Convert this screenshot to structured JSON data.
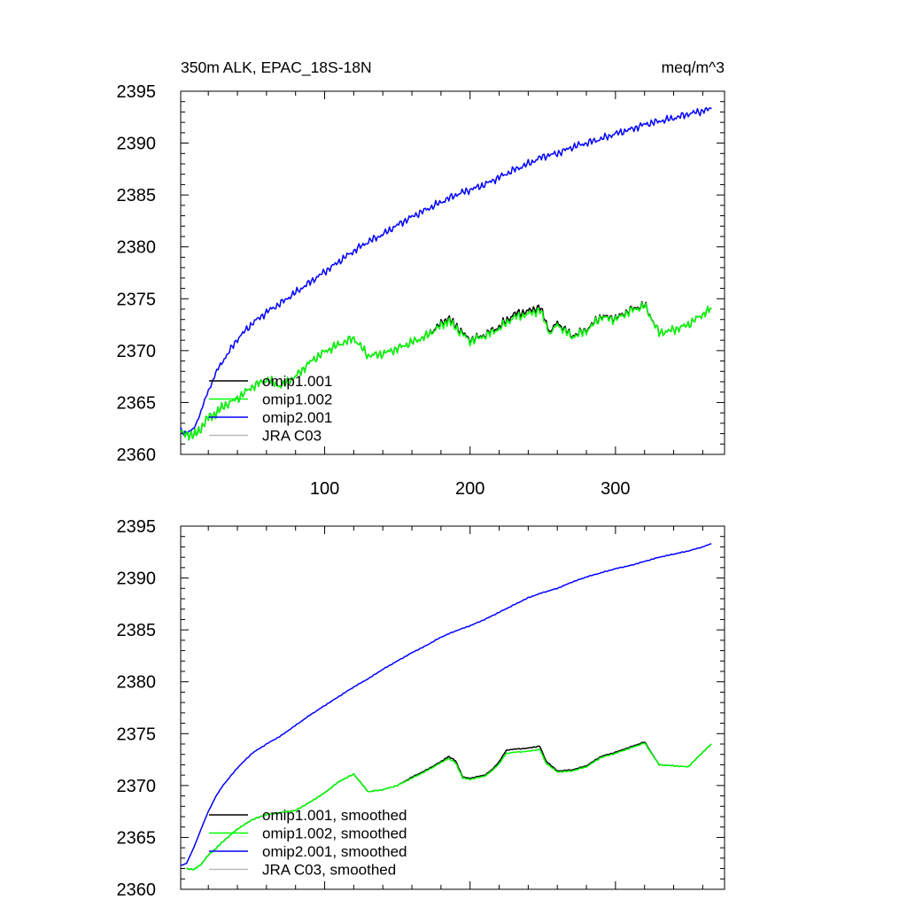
{
  "chart_data": [
    {
      "type": "line",
      "title": "350m ALK, EPAC_18S-18N",
      "units": "meq/m^3",
      "xlim": [
        1,
        375
      ],
      "ylim": [
        2360,
        2395
      ],
      "x_ticks": [
        "100",
        "200",
        "300"
      ],
      "y_ticks": [
        "2360",
        "2365",
        "2370",
        "2375",
        "2380",
        "2385",
        "2390",
        "2395"
      ],
      "legend_location": "lower-left",
      "series": [
        {
          "name": "omip1.001",
          "color": "#000000",
          "x": [
            1,
            5,
            10,
            15,
            20,
            25,
            30,
            40,
            50,
            60,
            70,
            80,
            90,
            100,
            110,
            120,
            130,
            140,
            150,
            160,
            170,
            180,
            185,
            190,
            200,
            210,
            220,
            230,
            240,
            248,
            255,
            260,
            270,
            280,
            290,
            300,
            310,
            320,
            330,
            340,
            350,
            360,
            366
          ],
          "y": [
            2362.2,
            2362.0,
            2361.8,
            2362.5,
            2363.6,
            2363.9,
            2364.6,
            2365.4,
            2366.5,
            2367.2,
            2366.6,
            2367.5,
            2368.9,
            2369.9,
            2370.6,
            2371.2,
            2369.5,
            2369.7,
            2370.2,
            2370.8,
            2371.4,
            2372.6,
            2373.1,
            2372.4,
            2371.0,
            2371.5,
            2372.3,
            2373.5,
            2373.8,
            2374.2,
            2371.8,
            2372.7,
            2371.4,
            2372.0,
            2373.3,
            2373.1,
            2373.9,
            2374.4,
            2371.7,
            2372.0,
            2372.5,
            2373.5,
            2374.1
          ]
        },
        {
          "name": "omip1.002",
          "color": "#00ff00",
          "x": [
            1,
            5,
            10,
            15,
            20,
            25,
            30,
            40,
            50,
            60,
            70,
            80,
            90,
            100,
            110,
            120,
            130,
            140,
            150,
            160,
            170,
            180,
            185,
            190,
            200,
            210,
            220,
            230,
            240,
            248,
            255,
            260,
            270,
            280,
            290,
            300,
            310,
            320,
            330,
            340,
            350,
            360,
            366
          ],
          "y": [
            2362.2,
            2362.0,
            2361.8,
            2362.5,
            2363.6,
            2363.9,
            2364.6,
            2365.4,
            2366.5,
            2367.2,
            2366.6,
            2367.5,
            2368.9,
            2369.9,
            2370.6,
            2371.2,
            2369.5,
            2369.7,
            2370.2,
            2370.8,
            2371.4,
            2372.4,
            2372.9,
            2372.2,
            2370.9,
            2371.4,
            2372.1,
            2373.2,
            2373.5,
            2373.9,
            2371.6,
            2372.5,
            2371.3,
            2371.9,
            2373.2,
            2373.0,
            2373.8,
            2374.3,
            2371.7,
            2372.0,
            2372.5,
            2373.5,
            2374.1
          ]
        },
        {
          "name": "omip2.001",
          "color": "#0000ff",
          "x": [
            1,
            5,
            10,
            15,
            20,
            25,
            30,
            40,
            50,
            60,
            70,
            80,
            90,
            100,
            110,
            120,
            130,
            140,
            150,
            160,
            170,
            180,
            190,
            200,
            210,
            220,
            230,
            240,
            250,
            260,
            270,
            280,
            290,
            300,
            310,
            320,
            330,
            340,
            350,
            360,
            366
          ],
          "y": [
            2362.3,
            2362.1,
            2362.4,
            2364.2,
            2366.1,
            2367.8,
            2369.0,
            2371.1,
            2372.6,
            2373.7,
            2374.6,
            2375.6,
            2376.6,
            2377.6,
            2378.6,
            2379.6,
            2380.5,
            2381.2,
            2382.1,
            2382.9,
            2383.6,
            2384.3,
            2385.0,
            2385.5,
            2386.0,
            2386.7,
            2387.4,
            2388.0,
            2388.7,
            2389.0,
            2389.6,
            2390.0,
            2390.4,
            2390.9,
            2391.3,
            2391.8,
            2392.1,
            2392.4,
            2392.8,
            2393.1,
            2393.3
          ]
        },
        {
          "name": "JRA C03",
          "color": "#b9b9b9",
          "x": [],
          "y": []
        }
      ]
    },
    {
      "type": "line",
      "xlim": [
        1,
        375
      ],
      "ylim": [
        2360,
        2395
      ],
      "y_ticks": [
        "2360",
        "2365",
        "2370",
        "2375",
        "2380",
        "2385",
        "2390",
        "2395"
      ],
      "legend_location": "lower-left",
      "series": [
        {
          "name": "omip1.001, smoothed",
          "color": "#000000",
          "x": [
            5,
            10,
            15,
            20,
            25,
            30,
            40,
            50,
            60,
            70,
            80,
            90,
            100,
            110,
            120,
            130,
            140,
            150,
            160,
            170,
            180,
            185,
            190,
            195,
            200,
            210,
            215,
            220,
            225,
            230,
            240,
            248,
            252,
            260,
            270,
            280,
            290,
            300,
            310,
            320,
            330,
            340,
            350,
            360,
            366
          ],
          "y": [
            2362.0,
            2361.9,
            2362.4,
            2363.3,
            2363.9,
            2364.6,
            2365.8,
            2366.7,
            2367.2,
            2367.4,
            2367.6,
            2368.4,
            2369.3,
            2370.4,
            2371.1,
            2369.4,
            2369.6,
            2370.0,
            2370.8,
            2371.5,
            2372.3,
            2372.8,
            2372.4,
            2370.8,
            2370.7,
            2371.0,
            2371.5,
            2372.3,
            2373.4,
            2373.5,
            2373.6,
            2373.8,
            2372.4,
            2371.4,
            2371.5,
            2371.9,
            2372.8,
            2373.2,
            2373.7,
            2374.2,
            2372.0,
            2371.9,
            2371.8,
            2373.2,
            2374.0
          ]
        },
        {
          "name": "omip1.002, smoothed",
          "color": "#00ff00",
          "x": [
            5,
            10,
            15,
            20,
            25,
            30,
            40,
            50,
            60,
            70,
            80,
            90,
            100,
            110,
            120,
            130,
            140,
            150,
            160,
            170,
            180,
            185,
            190,
            195,
            200,
            210,
            215,
            220,
            225,
            230,
            240,
            248,
            252,
            260,
            270,
            280,
            290,
            300,
            310,
            320,
            330,
            340,
            350,
            360,
            366
          ],
          "y": [
            2362.0,
            2361.9,
            2362.4,
            2363.3,
            2363.9,
            2364.6,
            2365.8,
            2366.7,
            2367.2,
            2367.4,
            2367.6,
            2368.4,
            2369.3,
            2370.4,
            2371.1,
            2369.4,
            2369.6,
            2370.0,
            2370.7,
            2371.4,
            2372.2,
            2372.6,
            2372.2,
            2370.7,
            2370.6,
            2370.9,
            2371.4,
            2372.1,
            2373.1,
            2373.2,
            2373.3,
            2373.5,
            2372.2,
            2371.3,
            2371.4,
            2371.8,
            2372.7,
            2373.1,
            2373.6,
            2374.1,
            2372.0,
            2371.9,
            2371.8,
            2373.2,
            2374.0
          ]
        },
        {
          "name": "omip2.001, smoothed",
          "color": "#0000ff",
          "x": [
            1,
            5,
            10,
            15,
            20,
            25,
            30,
            40,
            50,
            60,
            70,
            80,
            90,
            100,
            110,
            120,
            130,
            140,
            150,
            160,
            170,
            180,
            190,
            200,
            210,
            220,
            230,
            240,
            250,
            260,
            270,
            280,
            290,
            300,
            310,
            320,
            330,
            340,
            350,
            360,
            366
          ],
          "y": [
            2362.3,
            2362.5,
            2364.0,
            2365.8,
            2367.5,
            2368.9,
            2370.0,
            2371.7,
            2373.1,
            2374.0,
            2374.8,
            2375.8,
            2376.8,
            2377.7,
            2378.6,
            2379.5,
            2380.3,
            2381.2,
            2382.0,
            2382.8,
            2383.5,
            2384.3,
            2384.9,
            2385.4,
            2386.0,
            2386.7,
            2387.4,
            2388.1,
            2388.6,
            2389.0,
            2389.6,
            2390.1,
            2390.5,
            2390.9,
            2391.2,
            2391.6,
            2392.0,
            2392.3,
            2392.6,
            2393.0,
            2393.3
          ]
        },
        {
          "name": "JRA C03, smoothed",
          "color": "#b9b9b9",
          "x": [],
          "y": []
        }
      ]
    }
  ]
}
